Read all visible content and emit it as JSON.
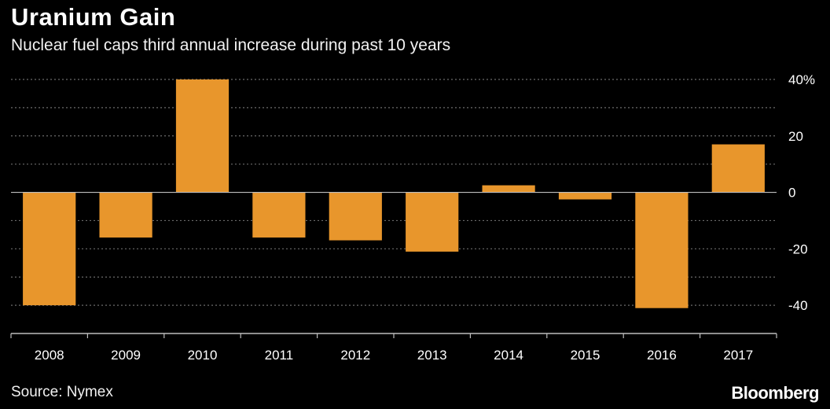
{
  "colors": {
    "bar": "#e8962c",
    "background": "#000000",
    "grid": "#6b6b6b",
    "axis": "#bdbdbd",
    "text": "#ffffff"
  },
  "source": "Source: Nymex",
  "logo_text": "Bloomberg",
  "chart_data": {
    "type": "bar",
    "title": "Uranium Gain",
    "subtitle": "Nuclear fuel caps third annual increase during past 10 years",
    "xlabel": "",
    "ylabel": "",
    "categories": [
      "2008",
      "2009",
      "2010",
      "2011",
      "2012",
      "2013",
      "2014",
      "2015",
      "2016",
      "2017"
    ],
    "values": [
      -40,
      -16,
      40,
      -16,
      -17,
      -21,
      2.5,
      -2.5,
      -41,
      17
    ],
    "ylim": [
      -50,
      40
    ],
    "yticks": [
      40,
      20,
      0,
      -20,
      -40
    ],
    "ytick_labels": [
      "40%",
      "20",
      "0",
      "-20",
      "-40"
    ],
    "y_axis_side": "right",
    "grid": true,
    "legend": false
  }
}
